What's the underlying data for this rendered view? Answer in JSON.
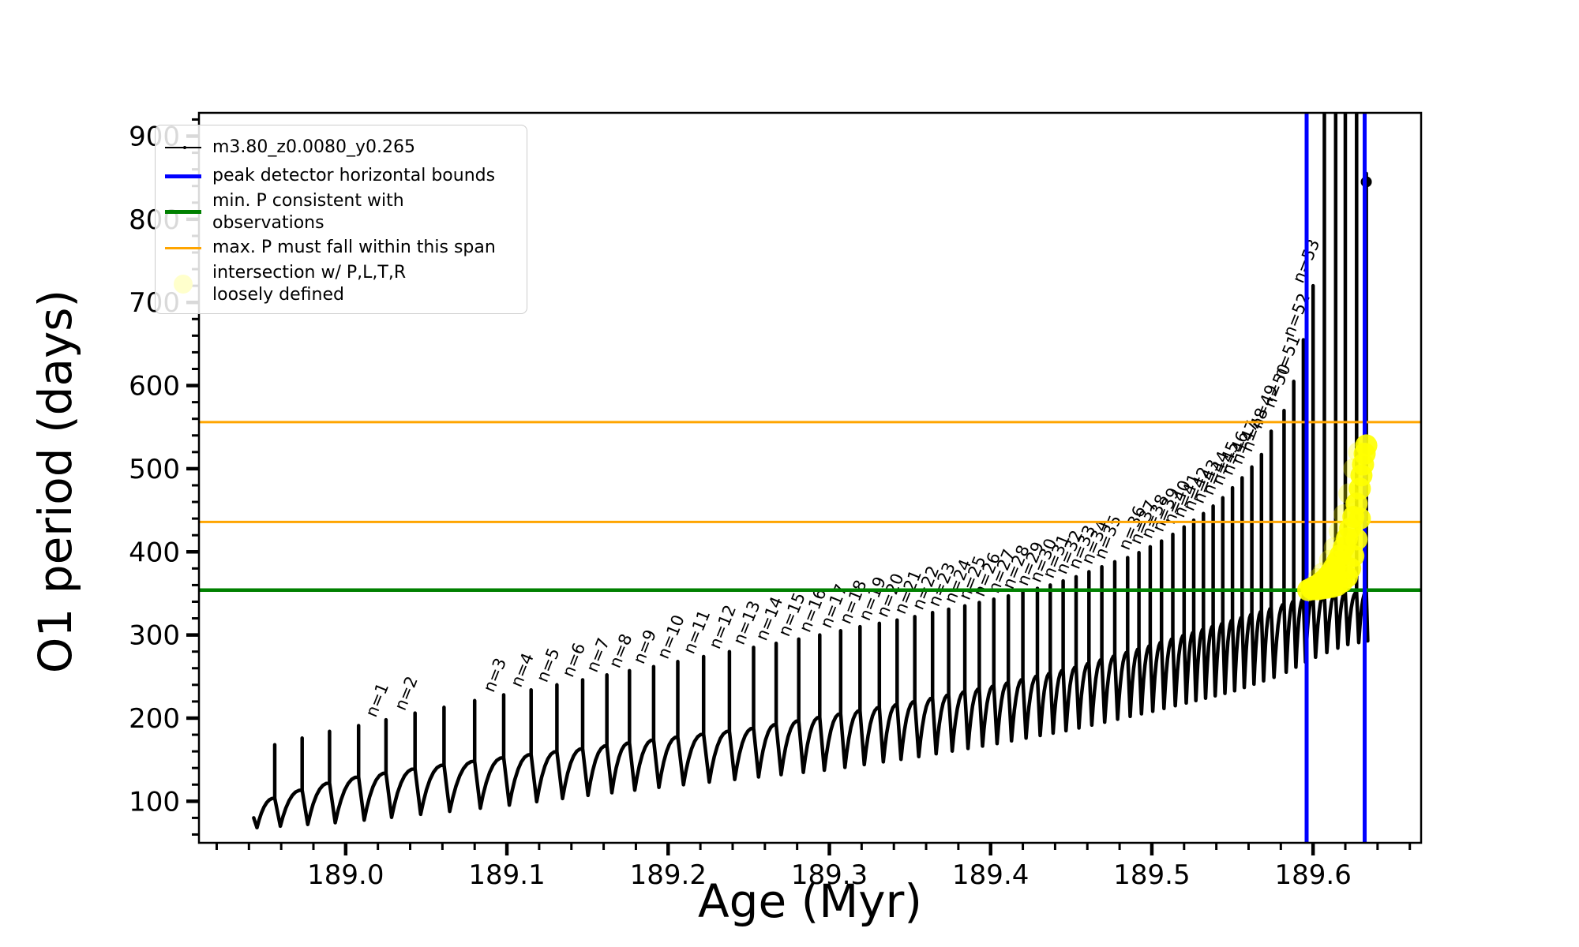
{
  "chart_data": {
    "type": "line",
    "title": "",
    "xlabel": "Age (Myr)",
    "ylabel": "O1 period (days)",
    "xlim": [
      188.909,
      189.667
    ],
    "ylim": [
      50,
      928
    ],
    "grid": false,
    "xticks": {
      "major_values": [
        189.0,
        189.1,
        189.2,
        189.3,
        189.4,
        189.5,
        189.6
      ],
      "major_labels": [
        "189.0",
        "189.1",
        "189.2",
        "189.3",
        "189.4",
        "189.5",
        "189.6"
      ],
      "minor_step": 0.02
    },
    "yticks": {
      "major_values": [
        100,
        200,
        300,
        400,
        500,
        600,
        700,
        800,
        900
      ],
      "major_labels": [
        "100",
        "200",
        "300",
        "400",
        "500",
        "600",
        "700",
        "800",
        "900"
      ],
      "minor_step": 20
    },
    "series_name": "m3.80_z0.0080_y0.265",
    "series_color": "#000000",
    "hlines": [
      {
        "name": "min-P",
        "y": 354,
        "color": "#008000",
        "width": 4.5
      },
      {
        "name": "max-P-span-low",
        "y": 436,
        "color": "#ffa500",
        "width": 3
      },
      {
        "name": "max-P-span-high",
        "y": 556,
        "color": "#ffa500",
        "width": 3
      }
    ],
    "vlines": [
      {
        "name": "peak-bound-left",
        "x": 189.596,
        "color": "#0000ff",
        "width": 5
      },
      {
        "name": "peak-bound-right",
        "x": 189.632,
        "color": "#0000ff",
        "width": 5
      }
    ],
    "legend": {
      "position": "upper-left",
      "items": [
        {
          "label": "m3.80_z0.0080_y0.265",
          "swatch": "line-dot",
          "color": "#000000"
        },
        {
          "label": "peak detector horizontal bounds",
          "swatch": "line",
          "color": "#0000ff"
        },
        {
          "label": "min. P consistent with observations",
          "swatch": "line",
          "color": "#008000"
        },
        {
          "label": "max. P must fall within this span",
          "swatch": "line",
          "color": "#ffa500"
        },
        {
          "label": "intersection w/ P,L,T,R\nloosely defined",
          "swatch": "circle",
          "color": "#ffffcc"
        }
      ]
    },
    "curve_start": {
      "age": 188.943,
      "value": 80
    },
    "plateau_keypoints": [
      [
        188.943,
        96
      ],
      [
        188.97,
        112
      ],
      [
        189.0,
        127
      ],
      [
        189.05,
        141
      ],
      [
        189.1,
        153
      ],
      [
        189.15,
        164
      ],
      [
        189.2,
        176
      ],
      [
        189.25,
        187
      ],
      [
        189.3,
        203
      ],
      [
        189.35,
        219
      ],
      [
        189.4,
        238
      ],
      [
        189.45,
        260
      ],
      [
        189.5,
        288
      ],
      [
        189.54,
        312
      ],
      [
        189.57,
        330
      ],
      [
        189.59,
        342
      ],
      [
        189.61,
        350
      ],
      [
        189.64,
        352
      ]
    ],
    "trough_keypoints": [
      [
        188.943,
        68
      ],
      [
        189.0,
        75
      ],
      [
        189.05,
        85
      ],
      [
        189.1,
        95
      ],
      [
        189.15,
        107
      ],
      [
        189.2,
        118
      ],
      [
        189.25,
        128
      ],
      [
        189.3,
        138
      ],
      [
        189.35,
        152
      ],
      [
        189.4,
        168
      ],
      [
        189.45,
        186
      ],
      [
        189.5,
        208
      ],
      [
        189.55,
        232
      ],
      [
        189.58,
        252
      ],
      [
        189.6,
        272
      ],
      [
        189.62,
        288
      ],
      [
        189.64,
        295
      ]
    ],
    "peaks": [
      {
        "n": null,
        "age": 188.956,
        "tip": 168
      },
      {
        "n": null,
        "age": 188.973,
        "tip": 176
      },
      {
        "n": null,
        "age": 188.99,
        "tip": 184
      },
      {
        "n": null,
        "age": 189.008,
        "tip": 191
      },
      {
        "n": "n=1",
        "age": 189.025,
        "tip": 198
      },
      {
        "n": "n=2",
        "age": 189.043,
        "tip": 206
      },
      {
        "n": null,
        "age": 189.061,
        "tip": 213
      },
      {
        "n": null,
        "age": 189.08,
        "tip": 221
      },
      {
        "n": "n=3",
        "age": 189.098,
        "tip": 228
      },
      {
        "n": "n=4",
        "age": 189.115,
        "tip": 234
      },
      {
        "n": "n=5",
        "age": 189.131,
        "tip": 240
      },
      {
        "n": "n=6",
        "age": 189.147,
        "tip": 246
      },
      {
        "n": "n=7",
        "age": 189.162,
        "tip": 252
      },
      {
        "n": "n=8",
        "age": 189.176,
        "tip": 257
      },
      {
        "n": "n=9",
        "age": 189.191,
        "tip": 262
      },
      {
        "n": "n=10",
        "age": 189.206,
        "tip": 268
      },
      {
        "n": "n=11",
        "age": 189.222,
        "tip": 274
      },
      {
        "n": "n=12",
        "age": 189.238,
        "tip": 280
      },
      {
        "n": "n=13",
        "age": 189.253,
        "tip": 285
      },
      {
        "n": "n=14",
        "age": 189.267,
        "tip": 290
      },
      {
        "n": "n=15",
        "age": 189.281,
        "tip": 295
      },
      {
        "n": "n=16",
        "age": 189.294,
        "tip": 300
      },
      {
        "n": "n=17",
        "age": 189.307,
        "tip": 305
      },
      {
        "n": "n=18",
        "age": 189.319,
        "tip": 310
      },
      {
        "n": "n=19",
        "age": 189.331,
        "tip": 314
      },
      {
        "n": "n=20",
        "age": 189.342,
        "tip": 318
      },
      {
        "n": "n=21",
        "age": 189.353,
        "tip": 322
      },
      {
        "n": "n=22",
        "age": 189.364,
        "tip": 327
      },
      {
        "n": "n=23",
        "age": 189.374,
        "tip": 331
      },
      {
        "n": "n=24",
        "age": 189.384,
        "tip": 335
      },
      {
        "n": "n=25",
        "age": 189.393,
        "tip": 339
      },
      {
        "n": "n=26",
        "age": 189.402,
        "tip": 343
      },
      {
        "n": "n=27",
        "age": 189.411,
        "tip": 347
      },
      {
        "n": "n=28",
        "age": 189.42,
        "tip": 352
      },
      {
        "n": "n=29",
        "age": 189.429,
        "tip": 356
      },
      {
        "n": "n=30",
        "age": 189.437,
        "tip": 360
      },
      {
        "n": "n=31",
        "age": 189.445,
        "tip": 365
      },
      {
        "n": "n=32",
        "age": 189.453,
        "tip": 370
      },
      {
        "n": "n=33",
        "age": 189.461,
        "tip": 376
      },
      {
        "n": "n=34",
        "age": 189.469,
        "tip": 382
      },
      {
        "n": "n=35",
        "age": 189.477,
        "tip": 388
      },
      {
        "n": null,
        "age": 189.485,
        "tip": 393
      },
      {
        "n": "n=36",
        "age": 189.492,
        "tip": 399
      },
      {
        "n": "n=37",
        "age": 189.499,
        "tip": 406
      },
      {
        "n": "n=38",
        "age": 189.506,
        "tip": 413
      },
      {
        "n": "n=39",
        "age": 189.513,
        "tip": 421
      },
      {
        "n": "n=40",
        "age": 189.52,
        "tip": 430
      },
      {
        "n": "n=41",
        "age": 189.526,
        "tip": 438
      },
      {
        "n": "n=42",
        "age": 189.532,
        "tip": 446
      },
      {
        "n": "n=43",
        "age": 189.538,
        "tip": 455
      },
      {
        "n": "n=44",
        "age": 189.544,
        "tip": 465
      },
      {
        "n": "n=45",
        "age": 189.55,
        "tip": 477
      },
      {
        "n": "n=46",
        "age": 189.556,
        "tip": 489
      },
      {
        "n": "n=47",
        "age": 189.562,
        "tip": 502
      },
      {
        "n": "n=48",
        "age": 189.568,
        "tip": 517
      },
      {
        "n": "n=49",
        "age": 189.574,
        "tip": 545
      },
      {
        "n": "n=50",
        "age": 189.582,
        "tip": 570
      },
      {
        "n": "n=51",
        "age": 189.588,
        "tip": 605
      },
      {
        "n": "n=52",
        "age": 189.594,
        "tip": 655
      },
      {
        "n": "n=53",
        "age": 189.6,
        "tip": 720
      },
      {
        "n": null,
        "age": 189.607,
        "tip": 928
      },
      {
        "n": null,
        "age": 189.614,
        "tip": 928
      },
      {
        "n": null,
        "age": 189.62,
        "tip": 928
      },
      {
        "n": null,
        "age": 189.627,
        "tip": 928
      },
      {
        "n": null,
        "age": 189.633,
        "tip": 855
      }
    ],
    "intersection": {
      "color": "#ffff00",
      "point_radius": 14,
      "chain": [
        [
          189.597,
          354
        ],
        [
          189.599,
          356
        ],
        [
          189.601,
          358
        ],
        [
          189.603,
          360
        ],
        [
          189.605,
          363
        ],
        [
          189.607,
          366
        ],
        [
          189.609,
          370
        ],
        [
          189.611,
          375
        ],
        [
          189.613,
          381
        ],
        [
          189.615,
          388
        ],
        [
          189.617,
          396
        ],
        [
          189.619,
          405
        ],
        [
          189.621,
          416
        ],
        [
          189.623,
          428
        ],
        [
          189.625,
          442
        ],
        [
          189.627,
          458
        ],
        [
          189.629,
          476
        ],
        [
          189.63,
          492
        ],
        [
          189.631,
          505
        ],
        [
          189.632,
          518
        ],
        [
          189.633,
          528
        ],
        [
          189.6,
          355
        ],
        [
          189.603,
          355
        ],
        [
          189.606,
          356
        ],
        [
          189.609,
          357
        ],
        [
          189.612,
          358
        ],
        [
          189.615,
          360
        ],
        [
          189.618,
          364
        ],
        [
          189.621,
          370
        ],
        [
          189.623,
          380
        ],
        [
          189.625,
          395
        ],
        [
          189.627,
          415
        ],
        [
          189.629,
          440
        ]
      ],
      "faint": [
        [
          189.603,
          368
        ],
        [
          189.606,
          375
        ],
        [
          189.61,
          390
        ],
        [
          189.613,
          405
        ],
        [
          189.616,
          425
        ],
        [
          189.619,
          445
        ],
        [
          189.622,
          470
        ],
        [
          189.625,
          500
        ],
        [
          189.628,
          520
        ]
      ]
    }
  }
}
